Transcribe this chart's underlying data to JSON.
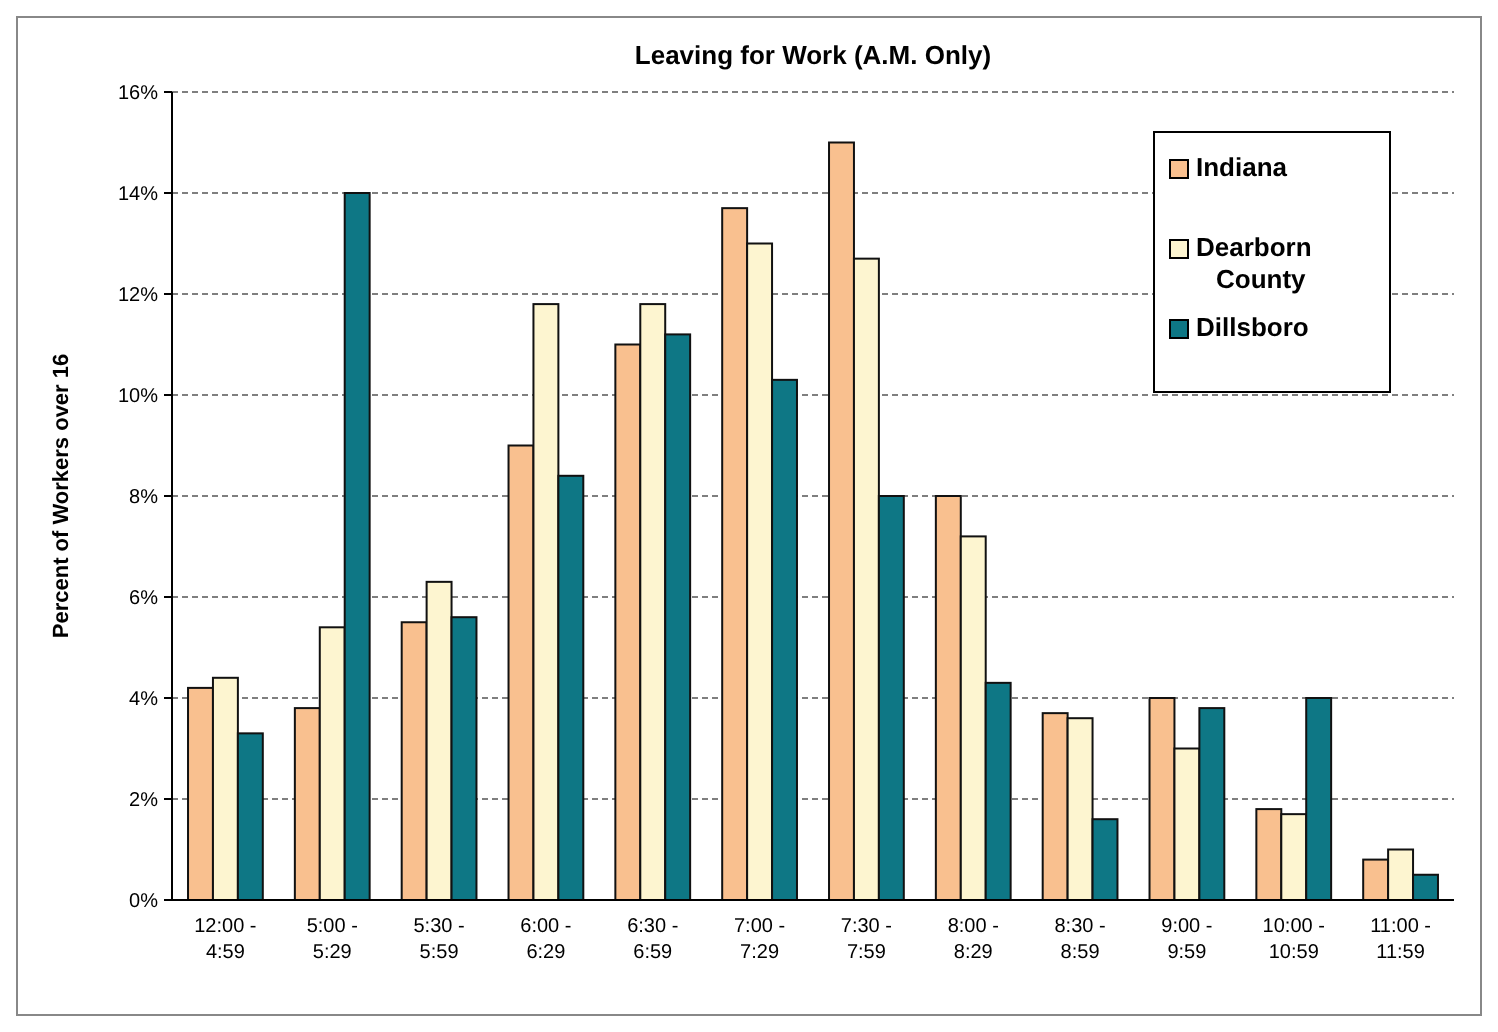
{
  "chart_data": {
    "type": "bar",
    "title": "Leaving for Work (A.M. Only)",
    "ylabel": "Percent of Workers over 16",
    "categories": [
      "12:00 - 4:59",
      "5:00 - 5:29",
      "5:30 - 5:59",
      "6:00 - 6:29",
      "6:30 - 6:59",
      "7:00 - 7:29",
      "7:30 - 7:59",
      "8:00 - 8:29",
      "8:30 - 8:59",
      "9:00 - 9:59",
      "10:00 - 10:59",
      "11:00 - 11:59"
    ],
    "series": [
      {
        "name": "Indiana",
        "color": "#f9c08f",
        "values": [
          4.2,
          3.8,
          5.5,
          9,
          11,
          13.7,
          15,
          8,
          3.7,
          4,
          1.8,
          0.8
        ]
      },
      {
        "name": "Dearborn County",
        "color": "#fdf5d0",
        "values": [
          4.4,
          5.4,
          6.3,
          11.8,
          11.8,
          13,
          12.7,
          7.2,
          3.6,
          3,
          1.7,
          1
        ]
      },
      {
        "name": "Dillsboro",
        "color": "#0e7785",
        "values": [
          3.3,
          14,
          5.6,
          8.4,
          11.2,
          10.3,
          8,
          4.3,
          1.6,
          3.8,
          4,
          0.5
        ]
      }
    ],
    "ylim": [
      0,
      16
    ],
    "yticks": [
      {
        "value": 0,
        "label": "0%"
      },
      {
        "value": 2,
        "label": "2%"
      },
      {
        "value": 4,
        "label": "4%"
      },
      {
        "value": 6,
        "label": "6%"
      },
      {
        "value": 8,
        "label": "8%"
      },
      {
        "value": 10,
        "label": "10%"
      },
      {
        "value": 12,
        "label": "12%"
      },
      {
        "value": 14,
        "label": "14%"
      },
      {
        "value": 16,
        "label": "16%"
      }
    ],
    "grid": "y",
    "legend": "top right"
  }
}
